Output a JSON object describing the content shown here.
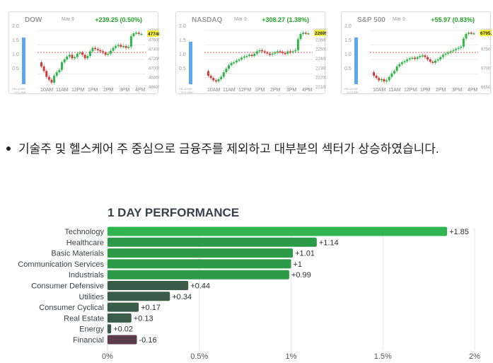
{
  "cards": [
    {
      "name": "DOW",
      "date": "Mar 9",
      "change": "+239.25 (0.50%)",
      "last_label": "47740.8",
      "price_ticks": [
        "47800",
        "47600",
        "47400",
        "47200",
        "47000",
        "46800",
        "46600"
      ],
      "y_ticks": [
        "2.0",
        "1.5",
        "1.0",
        "0.5"
      ],
      "x_ticks": [
        "10AM",
        "11AM",
        "12PM",
        "1PM",
        "2PM",
        "3PM",
        "4PM"
      ],
      "volume_label": [
        "RELATIVE",
        "VOLUME"
      ],
      "relative_volume": 1.65,
      "price_path": [
        0.55,
        0.62,
        0.7,
        0.8,
        0.85,
        0.9,
        0.78,
        0.72,
        0.68,
        0.55,
        0.5,
        0.45,
        0.42,
        0.48,
        0.46,
        0.4,
        0.38,
        0.42,
        0.48,
        0.44,
        0.36,
        0.3,
        0.32,
        0.34,
        0.36,
        0.38,
        0.42,
        0.4,
        0.35,
        0.3,
        0.27,
        0.25,
        0.28,
        0.27,
        0.3,
        0.28,
        0.1,
        0.05,
        0.04,
        0.06
      ]
    },
    {
      "name": "NASDAQ",
      "date": "Mar 9",
      "change": "+308.27 (1.38%)",
      "last_label": "22695.9",
      "price_ticks": [
        "22700",
        "22600",
        "22500",
        "22400",
        "22300",
        "22200",
        "22100"
      ],
      "y_ticks": [
        "2.0",
        "1.5",
        "1.0",
        "0.5"
      ],
      "x_ticks": [
        "10AM",
        "11AM",
        "12PM",
        "1PM",
        "2PM",
        "3PM",
        "4PM"
      ],
      "volume_label": [
        "RELATIVE",
        "VOLUME"
      ],
      "relative_volume": 1.5,
      "price_path": [
        0.7,
        0.78,
        0.82,
        0.86,
        0.88,
        0.84,
        0.8,
        0.72,
        0.66,
        0.6,
        0.56,
        0.55,
        0.52,
        0.5,
        0.47,
        0.45,
        0.44,
        0.42,
        0.44,
        0.4,
        0.36,
        0.34,
        0.36,
        0.38,
        0.4,
        0.42,
        0.4,
        0.38,
        0.36,
        0.37,
        0.39,
        0.4,
        0.36,
        0.38,
        0.36,
        0.34,
        0.15,
        0.06,
        0.04,
        0.05
      ]
    },
    {
      "name": "S&P 500",
      "date": "Mar 9",
      "change": "+55.97 (0.83%)",
      "last_label": "6795.99",
      "price_ticks": [
        "6800",
        "6750",
        "6700",
        "6650"
      ],
      "y_ticks": [
        "2.0",
        "1.5",
        "1.0",
        "0.5"
      ],
      "x_ticks": [
        "10AM",
        "11AM",
        "12PM",
        "1PM",
        "2PM",
        "3PM",
        "4PM"
      ],
      "volume_label": [
        "RELATIVE",
        "VOLUME"
      ],
      "relative_volume": 1.65,
      "price_path": [
        0.72,
        0.78,
        0.82,
        0.86,
        0.84,
        0.88,
        0.86,
        0.8,
        0.74,
        0.7,
        0.62,
        0.58,
        0.55,
        0.53,
        0.5,
        0.48,
        0.47,
        0.49,
        0.46,
        0.44,
        0.43,
        0.46,
        0.5,
        0.54,
        0.56,
        0.52,
        0.5,
        0.46,
        0.42,
        0.4,
        0.38,
        0.36,
        0.34,
        0.32,
        0.3,
        0.28,
        0.14,
        0.06,
        0.04,
        0.05
      ]
    }
  ],
  "bullet_text": "기술주 및 헬스케어 주 중심으로 금융주를 제외하고 대부분의 섹터가 상승하였습니다.",
  "chart_data": {
    "type": "bar",
    "orientation": "horizontal",
    "title": "1 DAY PERFORMANCE",
    "categories": [
      "Technology",
      "Healthcare",
      "Basic Materials",
      "Communication Services",
      "Industrials",
      "Consumer Defensive",
      "Utilities",
      "Consumer Cyclical",
      "Real Estate",
      "Energy",
      "Financial"
    ],
    "values": [
      1.85,
      1.14,
      1.01,
      1,
      0.99,
      0.44,
      0.34,
      0.17,
      0.13,
      0.02,
      -0.16
    ],
    "value_labels": [
      "+1.85",
      "+1.14",
      "+1.01",
      "+1",
      "+0.99",
      "+0.44",
      "+0.34",
      "+0.17",
      "+0.13",
      "+0.02",
      "-0.16"
    ],
    "x_ticks": [
      "0%",
      "0.5%",
      "1%",
      "1.5%",
      "2%"
    ],
    "xlim": [
      0,
      2
    ],
    "colors": {
      "strong_gain": "#30b350",
      "moderate_gain": "#2c9a47",
      "weak_gain": "#3a5c48",
      "loss": "#5a3c4a"
    }
  }
}
